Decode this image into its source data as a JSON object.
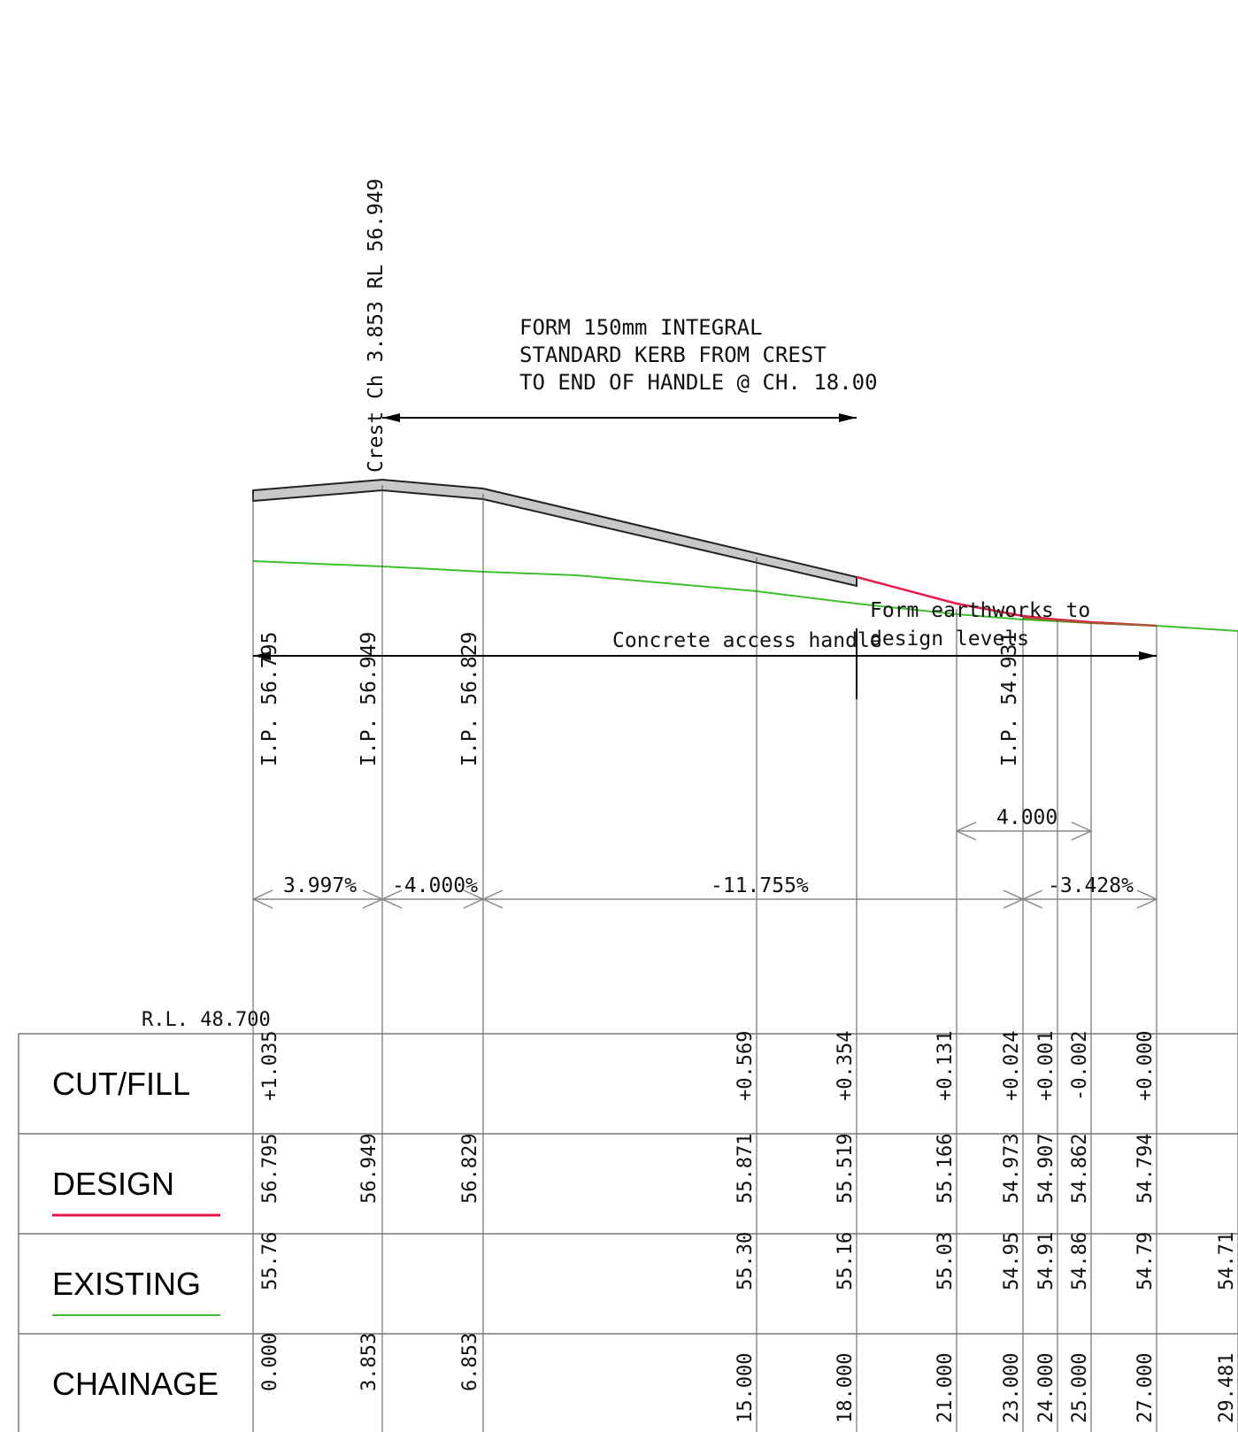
{
  "notes": {
    "crest_label": "Crest Ch 3.853 RL 56.949",
    "kerb_note": [
      "FORM 150mm INTEGRAL",
      "STANDARD KERB FROM CREST",
      "TO END OF HANDLE @ CH. 18.00"
    ],
    "handle_label": "Concrete access handle",
    "earthworks_note": [
      "Form earthworks to",
      "design levels"
    ],
    "datum": "R.L. 48.700"
  },
  "ip_labels": [
    "I.P. 56.795",
    "I.P. 56.949",
    "I.P. 56.829",
    "I.P. 54.931"
  ],
  "grades": [
    "3.997%",
    "-4.000%",
    "-11.755%",
    "-3.428%"
  ],
  "dimension": "4.000",
  "rows": {
    "cut_fill": "CUT/FILL",
    "design": "DESIGN",
    "existing": "EXISTING",
    "chainage": "CHAINAGE"
  },
  "table": {
    "cut_fill": [
      "+1.035",
      "+0.569",
      "+0.354",
      "+0.131",
      "+0.024",
      "+0.001",
      "-0.002",
      "+0.000"
    ],
    "design": [
      "56.795",
      "56.949",
      "56.829",
      "55.871",
      "55.519",
      "55.166",
      "54.973",
      "54.907",
      "54.862",
      "54.794"
    ],
    "existing": [
      "55.76",
      "55.30",
      "55.16",
      "55.03",
      "54.95",
      "54.91",
      "54.86",
      "54.79",
      "54.71"
    ],
    "chainage": [
      "0.000",
      "3.853",
      "6.853",
      "15.000",
      "18.000",
      "21.000",
      "23.000",
      "24.000",
      "25.000",
      "27.000",
      "29.481"
    ]
  },
  "colors": {
    "design_line": "#e8174a",
    "existing_line": "#3dbf2e",
    "handle_fill": "#c8c8c8"
  }
}
